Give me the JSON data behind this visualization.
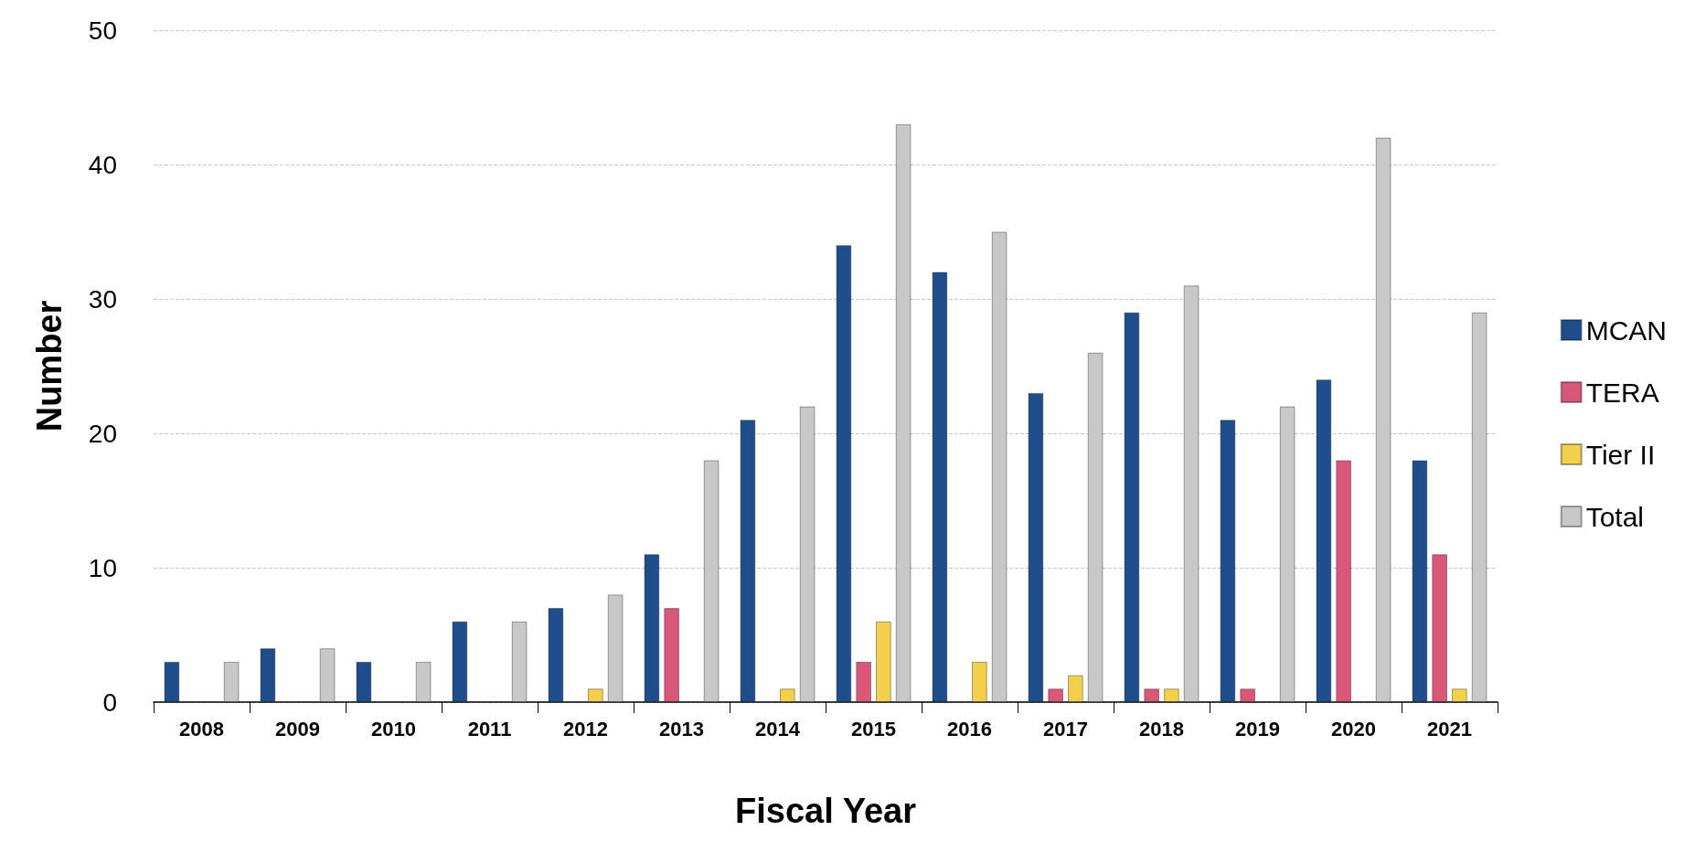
{
  "chart_data": {
    "type": "bar",
    "xlabel": "Fiscal Year",
    "ylabel": "Number",
    "categories": [
      "2008",
      "2009",
      "2010",
      "2011",
      "2012",
      "2013",
      "2014",
      "2015",
      "2016",
      "2017",
      "2018",
      "2019",
      "2020",
      "2021"
    ],
    "series": [
      {
        "name": "MCAN",
        "color": "#1f4e8c",
        "values": [
          3,
          4,
          3,
          6,
          7,
          11,
          21,
          34,
          32,
          23,
          29,
          21,
          24,
          18
        ]
      },
      {
        "name": "TERA",
        "color": "#d9587a",
        "values": [
          null,
          null,
          null,
          null,
          null,
          7,
          null,
          3,
          null,
          1,
          1,
          1,
          18,
          11
        ]
      },
      {
        "name": "Tier II",
        "color": "#f2d04b",
        "values": [
          null,
          null,
          null,
          null,
          1,
          null,
          1,
          6,
          3,
          2,
          1,
          null,
          null,
          1
        ]
      },
      {
        "name": "Total",
        "color": "#c8c8c8",
        "values": [
          3,
          4,
          3,
          6,
          8,
          18,
          22,
          43,
          35,
          26,
          31,
          22,
          42,
          29
        ]
      }
    ],
    "ylim": [
      0,
      50
    ],
    "yticks": [
      0,
      10,
      20,
      30,
      40,
      50
    ],
    "grid": "y",
    "legend": "right"
  }
}
